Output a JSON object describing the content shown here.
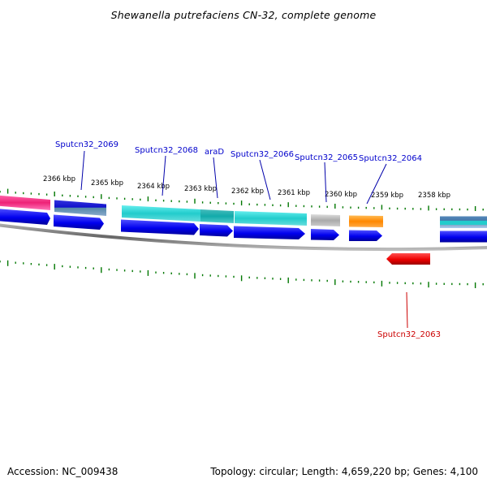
{
  "header": {
    "title": "Shewanella putrefaciens CN-32, complete genome"
  },
  "footer": {
    "accession": "Accession: NC_009438",
    "topology": "Topology: circular; Length: 4,659,220 bp; Genes: 4,100"
  },
  "scale": {
    "labels": [
      "2366 kbp",
      "2365 kbp",
      "2364 kbp",
      "2363 kbp",
      "2362 kbp",
      "2361 kbp",
      "2360 kbp",
      "2359 kbp",
      "2358 kbp"
    ]
  },
  "genes": [
    {
      "label": "Sputcn32_2069",
      "color": "#0000cc"
    },
    {
      "label": "Sputcn32_2068",
      "color": "#0000cc"
    },
    {
      "label": "araD",
      "color": "#0000cc"
    },
    {
      "label": "Sputcn32_2066",
      "color": "#0000cc"
    },
    {
      "label": "Sputcn32_2065",
      "color": "#0000cc"
    },
    {
      "label": "Sputcn32_2064",
      "color": "#0000cc"
    },
    {
      "label": "Sputcn32_2063",
      "color": "#cc0000"
    }
  ],
  "colors": {
    "forward_cds": "#0000ee",
    "reverse_cds": "#ee0000",
    "tick": "#007700",
    "backbone": "#777777",
    "cog_cyan": "#22cccc",
    "cog_teal": "#11aaaa",
    "cog_gray": "#aaaaaa",
    "cog_orange": "#ff8800",
    "cog_pink": "#ee2277",
    "cog_blue": "#1111cc",
    "cog_steel": "#4477aa"
  }
}
